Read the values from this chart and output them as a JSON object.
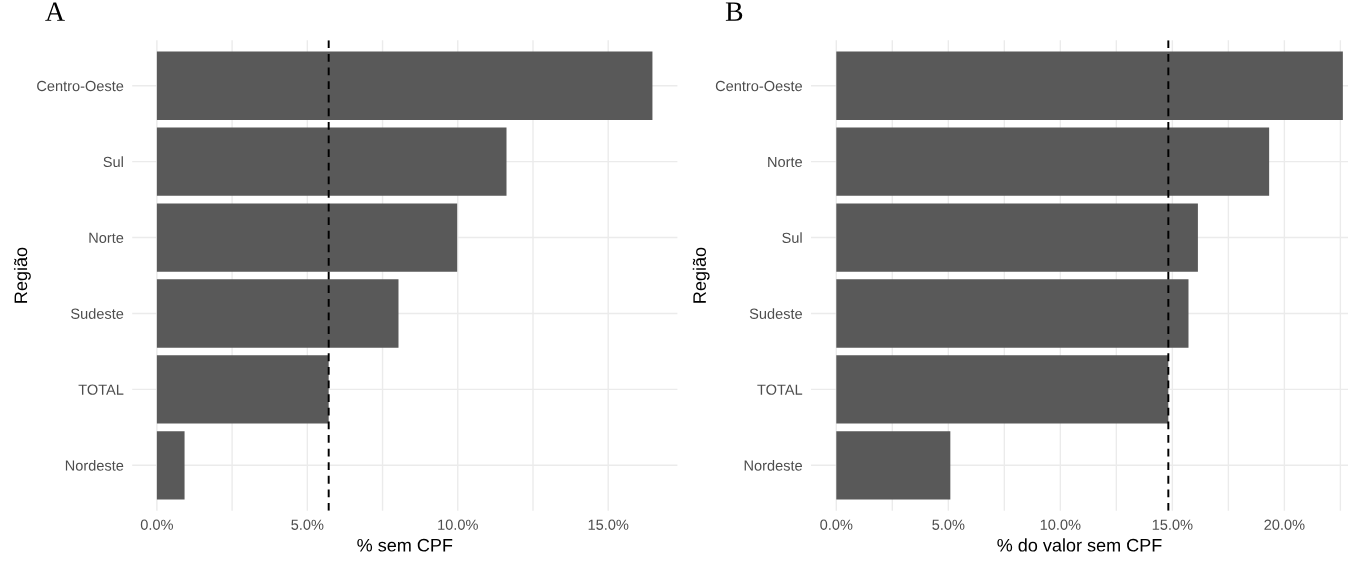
{
  "chart_data": [
    {
      "type": "bar",
      "orientation": "horizontal",
      "title": "A",
      "xlabel": "% sem CPF",
      "ylabel": "Região",
      "categories": [
        "Centro-Oeste",
        "Sul",
        "Norte",
        "Sudeste",
        "TOTAL",
        "Nordeste"
      ],
      "values": [
        16.47,
        11.62,
        9.98,
        8.03,
        5.71,
        0.92
      ],
      "color": "#595959",
      "xlim": [
        -0.82,
        17.3
      ],
      "xticks": [
        {
          "value": 0,
          "label": "0.0%"
        },
        {
          "value": 2.5,
          "label": null
        },
        {
          "value": 5,
          "label": "5.0%"
        },
        {
          "value": 7.5,
          "label": null
        },
        {
          "value": 10,
          "label": "10.0%"
        },
        {
          "value": 12.5,
          "label": null
        },
        {
          "value": 15,
          "label": "15.0%"
        }
      ],
      "ref_lines": [
        {
          "axis": "x",
          "value": 5.71,
          "color": "#000000",
          "line_style": "dashed"
        }
      ],
      "grid": true
    },
    {
      "type": "bar",
      "orientation": "horizontal",
      "title": "B",
      "xlabel": "% do valor sem CPF",
      "ylabel": "Região",
      "categories": [
        "Centro-Oeste",
        "Norte",
        "Sul",
        "Sudeste",
        "TOTAL",
        "Nordeste"
      ],
      "values": [
        22.61,
        19.32,
        16.14,
        15.72,
        14.82,
        5.09
      ],
      "color": "#595959",
      "xlim": [
        -1.13,
        22.84
      ],
      "xticks": [
        {
          "value": 0,
          "label": "0.0%"
        },
        {
          "value": 2.5,
          "label": null
        },
        {
          "value": 5,
          "label": "5.0%"
        },
        {
          "value": 7.5,
          "label": null
        },
        {
          "value": 10,
          "label": "10.0%"
        },
        {
          "value": 12.5,
          "label": null
        },
        {
          "value": 15,
          "label": "15.0%"
        },
        {
          "value": 17.5,
          "label": null
        },
        {
          "value": 20,
          "label": "20.0%"
        },
        {
          "value": 22.5,
          "label": null
        }
      ],
      "ref_lines": [
        {
          "axis": "x",
          "value": 14.82,
          "color": "#000000",
          "line_style": "dashed"
        }
      ],
      "grid": true
    }
  ]
}
